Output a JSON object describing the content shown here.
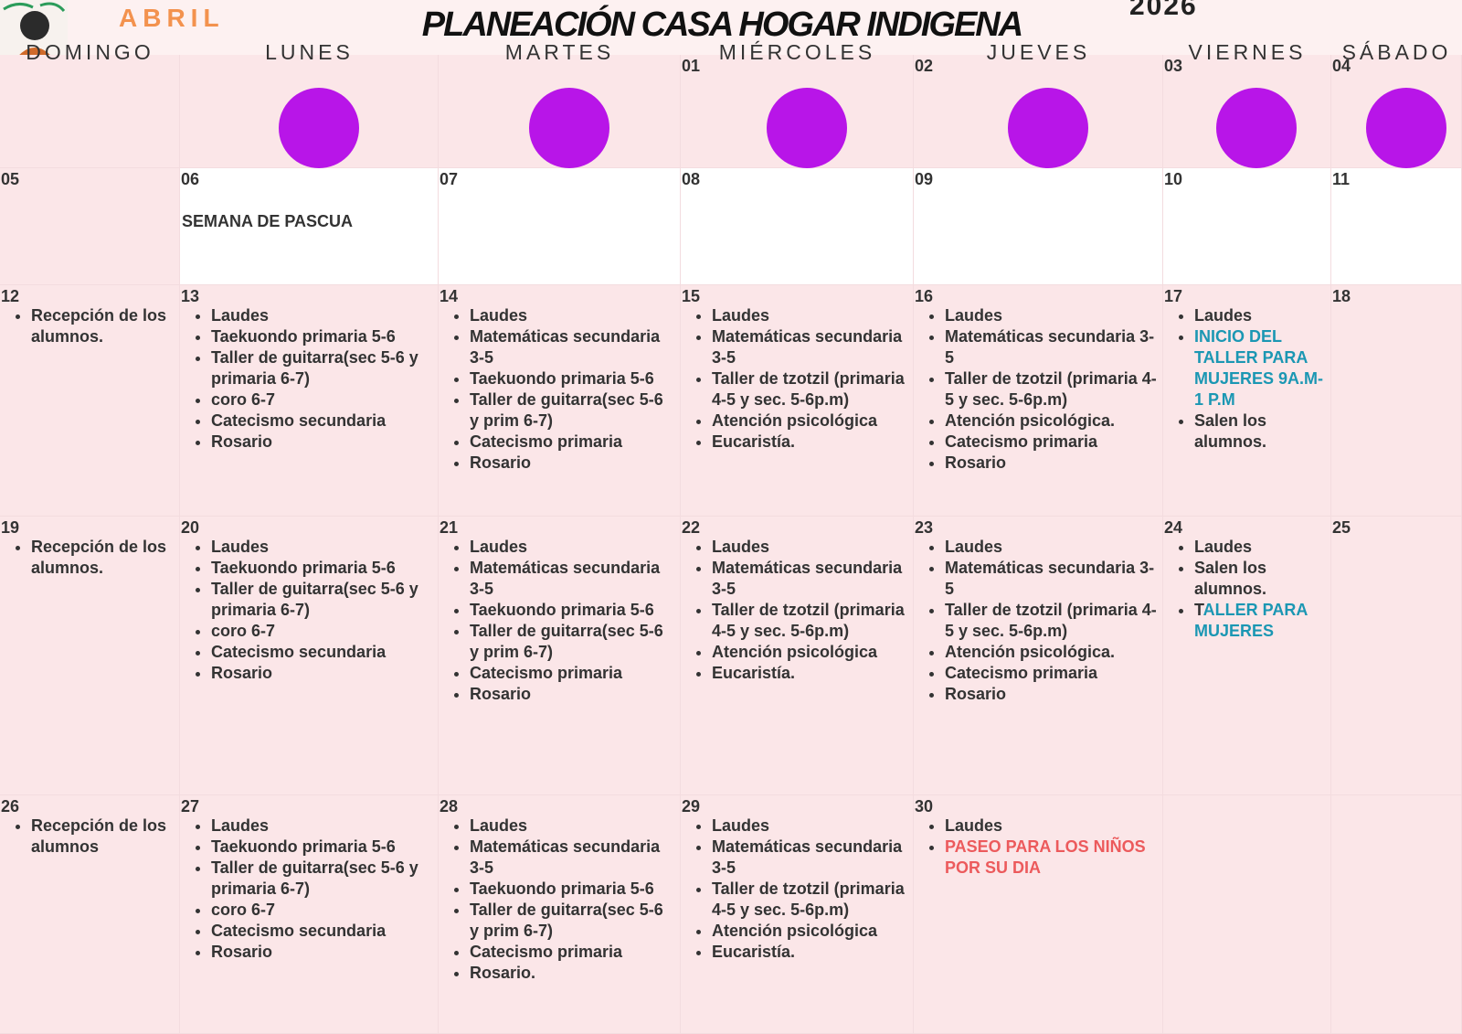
{
  "header": {
    "month": "ABRIL",
    "title": "PLANEACIÓN CASA HOGAR INDIGENA",
    "year": "2026"
  },
  "weekdays": [
    "DOMINGO",
    "LUNES",
    "MARTES",
    "MIÉRCOLES",
    "JUEVES",
    "VIERNES",
    "SÁBADO"
  ],
  "weeks": [
    [
      {},
      {},
      {},
      {
        "day": "01"
      },
      {
        "day": "02"
      },
      {
        "day": "03"
      },
      {
        "day": "04"
      }
    ],
    [
      {
        "day": "05"
      },
      {
        "day": "06",
        "note": "SEMANA DE PASCUA"
      },
      {
        "day": "07"
      },
      {
        "day": "08"
      },
      {
        "day": "09"
      },
      {
        "day": "10"
      },
      {
        "day": "11"
      }
    ],
    [
      {
        "day": "12",
        "items": [
          "Recepción de los alumnos."
        ]
      },
      {
        "day": "13",
        "items": [
          "Laudes",
          "Taekuondo primaria 5-6",
          "Taller de guitarra(sec 5-6 y primaria 6-7)",
          "coro 6-7",
          "Catecismo secundaria",
          "Rosario"
        ]
      },
      {
        "day": "14",
        "items": [
          "Laudes",
          "Matemáticas secundaria 3-5",
          "Taekuondo primaria 5-6",
          "Taller de guitarra(sec 5-6 y prim 6-7)",
          "Catecismo primaria",
          "Rosario"
        ]
      },
      {
        "day": "15",
        "items": [
          "Laudes",
          "Matemáticas secundaria 3-5",
          "Taller de tzotzil (primaria 4-5 y sec. 5-6p.m)",
          "Atención psicológica",
          "Eucaristía."
        ]
      },
      {
        "day": "16",
        "items": [
          "Laudes",
          "Matemáticas secundaria 3-5",
          "Taller de tzotzil (primaria 4-5 y sec. 5-6p.m)",
          "Atención psicológica.",
          "Catecismo primaria",
          "Rosario"
        ]
      },
      {
        "day": "17",
        "items": [
          "Laudes",
          {
            "text": "INICIO DEL TALLER PARA MUJERES 9A.M- 1 P.M",
            "color": "#1b97b3"
          },
          "Salen los alumnos."
        ]
      },
      {
        "day": "18"
      }
    ],
    [
      {
        "day": "19",
        "items": [
          "Recepción de los alumnos."
        ]
      },
      {
        "day": "20",
        "items": [
          "Laudes",
          "Taekuondo primaria 5-6",
          "Taller de guitarra(sec 5-6 y primaria 6-7)",
          "coro 6-7",
          "Catecismo secundaria",
          "Rosario"
        ]
      },
      {
        "day": "21",
        "items": [
          "Laudes",
          "Matemáticas secundaria 3-5",
          "Taekuondo primaria 5-6",
          "Taller de guitarra(sec 5-6 y prim 6-7)",
          "Catecismo primaria",
          "Rosario"
        ]
      },
      {
        "day": "22",
        "items": [
          "Laudes",
          "Matemáticas secundaria 3-5",
          "Taller de tzotzil (primaria 4-5 y sec. 5-6p.m)",
          "Atención psicológica",
          "Eucaristía."
        ]
      },
      {
        "day": "23",
        "items": [
          "Laudes",
          "Matemáticas secundaria 3-5",
          "Taller de tzotzil (primaria 4-5 y sec. 5-6p.m)",
          "Atención psicológica.",
          "Catecismo primaria",
          "Rosario"
        ]
      },
      {
        "day": "24",
        "items": [
          "Laudes",
          "Salen los alumnos.",
          {
            "parts": [
              {
                "text": "T"
              },
              {
                "text": "ALLER PARA MUJERES",
                "color": "#1b97b3"
              }
            ]
          }
        ]
      },
      {
        "day": "25"
      }
    ],
    [
      {
        "day": "26",
        "items": [
          "Recepción de los alumnos"
        ]
      },
      {
        "day": "27",
        "items": [
          "Laudes",
          "Taekuondo primaria 5-6",
          "Taller de guitarra(sec 5-6 y primaria 6-7)",
          "coro 6-7",
          "Catecismo secundaria",
          "Rosario"
        ]
      },
      {
        "day": "28",
        "items": [
          "Laudes",
          "Matemáticas secundaria 3-5",
          "Taekuondo primaria 5-6",
          "Taller de guitarra(sec 5-6 y prim 6-7)",
          "Catecismo primaria",
          "Rosario."
        ]
      },
      {
        "day": "29",
        "items": [
          "Laudes",
          "Matemáticas secundaria 3-5",
          "Taller de tzotzil (primaria 4-5 y sec. 5-6p.m)",
          "Atención psicológica",
          "Eucaristía."
        ]
      },
      {
        "day": "30",
        "items": [
          "Laudes",
          {
            "text": "PASEO PARA LOS NIÑOS POR SU DIA",
            "color": "#ec5a5c"
          }
        ]
      },
      {},
      {}
    ]
  ]
}
